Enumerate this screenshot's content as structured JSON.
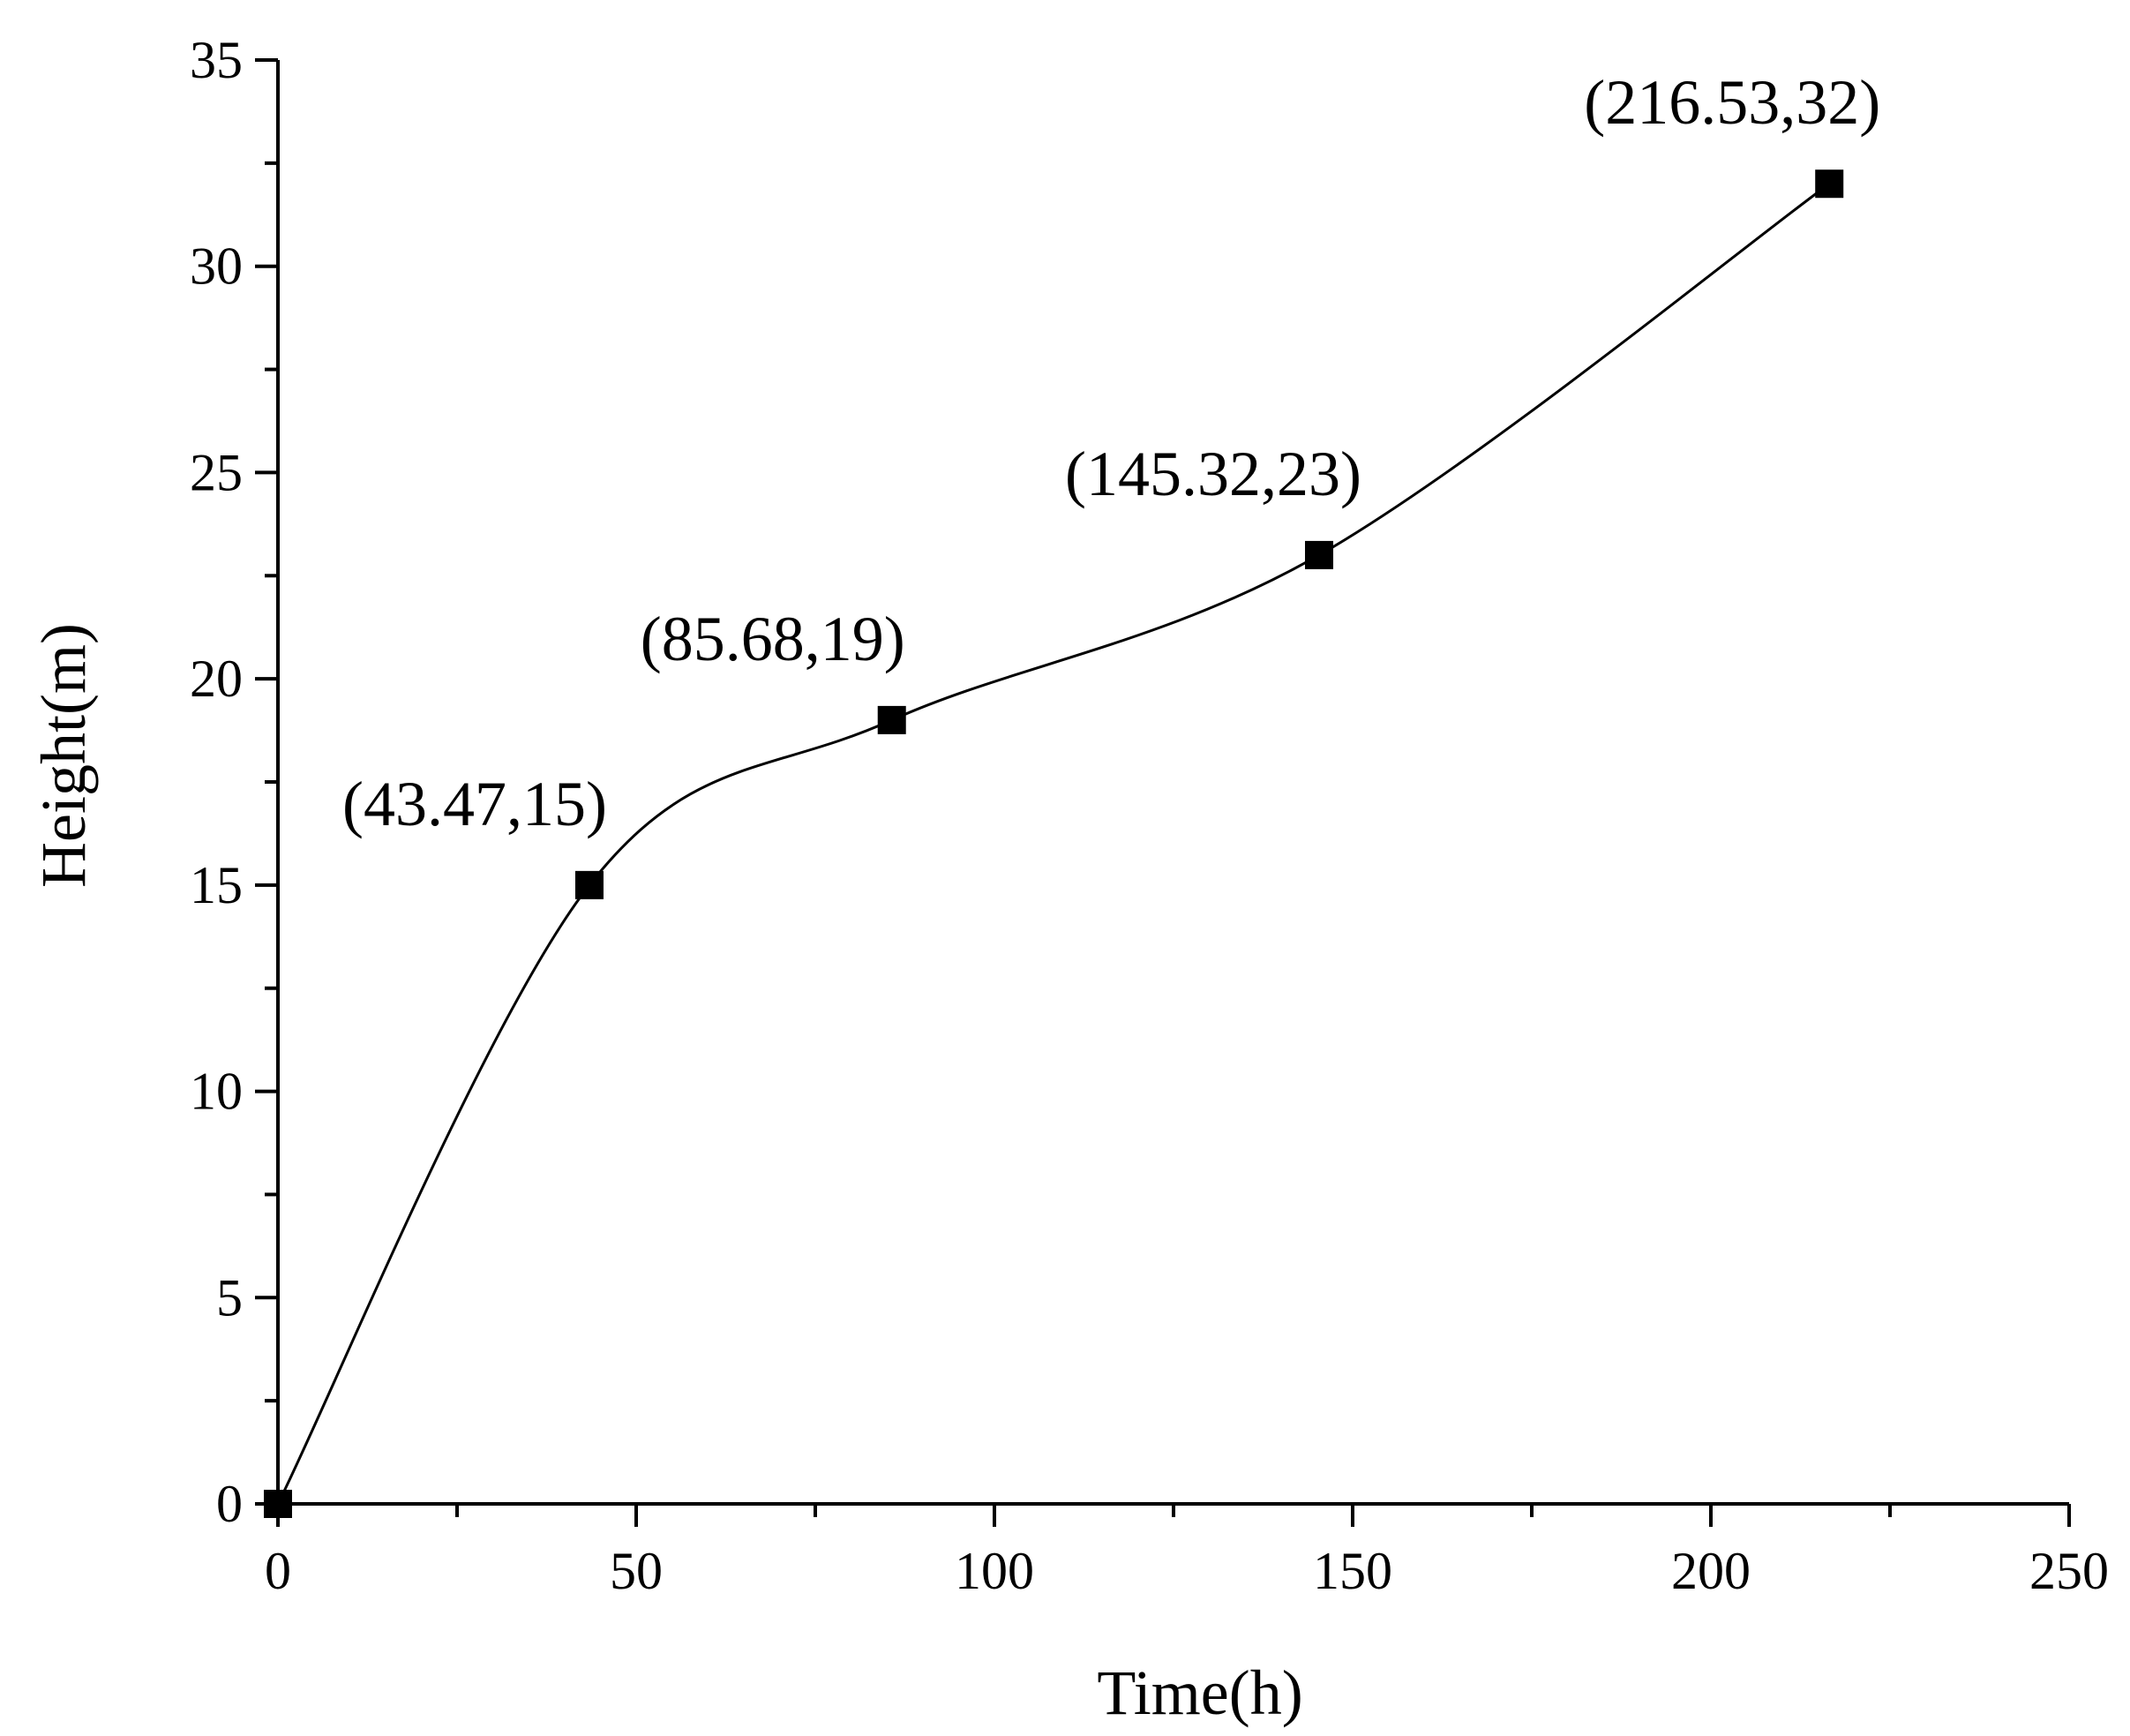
{
  "chart_data": {
    "type": "line",
    "title": "",
    "xlabel": "Time(h)",
    "ylabel": "Height(m)",
    "xlim": [
      0,
      250
    ],
    "ylim": [
      0,
      35
    ],
    "xticks": [
      0,
      50,
      100,
      150,
      200,
      250
    ],
    "yticks": [
      0,
      5,
      10,
      15,
      20,
      25,
      30,
      35
    ],
    "xtick_labels": [
      "0",
      "50",
      "100",
      "150",
      "200",
      "250"
    ],
    "ytick_labels": [
      "0",
      "5",
      "10",
      "15",
      "20",
      "25",
      "30",
      "35"
    ],
    "grid": false,
    "series": [
      {
        "name": "Height",
        "marker": "square",
        "smooth": true,
        "x": [
          0,
          43.47,
          85.68,
          145.32,
          216.53
        ],
        "y": [
          0,
          15,
          19,
          23,
          32
        ]
      }
    ],
    "annotations": [
      {
        "text": "(43.47,15)",
        "x": 43.47,
        "y": 15
      },
      {
        "text": "(85.68,19)",
        "x": 85.68,
        "y": 19
      },
      {
        "text": "(145.32,23)",
        "x": 145.32,
        "y": 23
      },
      {
        "text": "(216.53,32)",
        "x": 216.53,
        "y": 32
      }
    ],
    "colors": {
      "line": "#000000",
      "marker": "#000000",
      "axis": "#000000"
    }
  }
}
